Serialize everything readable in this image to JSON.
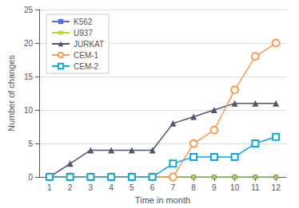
{
  "chart_data": {
    "type": "line",
    "x": [
      1,
      2,
      3,
      4,
      5,
      6,
      7,
      8,
      9,
      10,
      11,
      12
    ],
    "series": [
      {
        "name": "K562",
        "marker": "square",
        "values": [
          0,
          0,
          0,
          0,
          0,
          0,
          0,
          0,
          0,
          0,
          0,
          0
        ]
      },
      {
        "name": "U937",
        "marker": "x",
        "values": [
          0,
          0,
          0,
          0,
          0,
          0,
          0,
          0,
          0,
          0,
          0,
          0
        ]
      },
      {
        "name": "JURKAT",
        "marker": "triangle",
        "values": [
          0,
          2,
          4,
          4,
          4,
          4,
          8,
          9,
          10,
          11,
          11,
          11
        ]
      },
      {
        "name": "CEM-1",
        "marker": "circle_open",
        "values": [
          0,
          0,
          0,
          0,
          0,
          0,
          0,
          5,
          7,
          13,
          18,
          20
        ]
      },
      {
        "name": "CEM-2",
        "marker": "square_open",
        "values": [
          0,
          0,
          0,
          0,
          0,
          0,
          2,
          3,
          3,
          3,
          5,
          6
        ]
      }
    ],
    "xlabel": "Time in month",
    "ylabel": "Number of changes",
    "xlim": [
      0.5,
      12.5
    ],
    "xticks": [
      1,
      2,
      3,
      4,
      5,
      6,
      7,
      8,
      9,
      10,
      11,
      12
    ],
    "ylim": [
      0,
      25
    ],
    "yticks": [
      0,
      5,
      10,
      15,
      20,
      25
    ],
    "grid": true,
    "legend": "upper left"
  }
}
